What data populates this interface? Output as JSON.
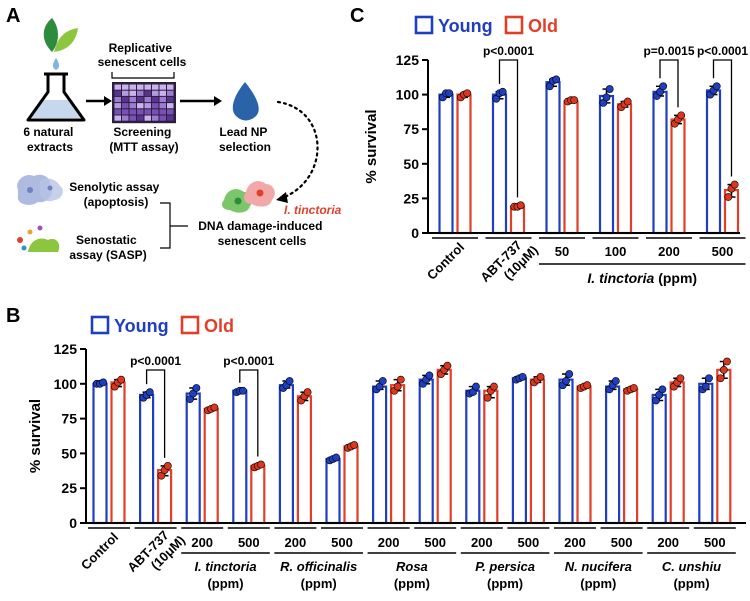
{
  "colors": {
    "young": "#1f3fbf",
    "old": "#e0402a",
    "old_point": "#d9381e",
    "young_point": "#1f3fbf",
    "flask_fill": "#c6d8ee",
    "leaf_dark": "#2e8b3e",
    "leaf_light": "#8cc63f",
    "drop": "#2a63a8",
    "grid_purple": "#7a4fb6"
  },
  "panel_a": {
    "label": "A",
    "extracts": "6 natural\nextracts",
    "replicative": "Replicative\nsenescent cells",
    "screening": "Screening\n(MTT assay)",
    "lead": "Lead NP\nselection",
    "senolytic": "Senolytic assay\n(apoptosis)",
    "senostatic": "Senostatic\nassay (SASP)",
    "itinctoria": "I. tinctoria",
    "dna_damage": "DNA damage-induced\nsenescent cells"
  },
  "chart_data": [
    {
      "panel": "C",
      "type": "bar",
      "legend": [
        "Young",
        "Old"
      ],
      "legend_position": "top",
      "ylabel": "% survival",
      "ylim": [
        0,
        125
      ],
      "yticks": [
        0,
        25,
        50,
        75,
        100,
        125
      ],
      "categories": [
        "Control",
        "ABT-737\n(10μM)",
        "50",
        "100",
        "200",
        "500"
      ],
      "group_label": {
        "text": "I. tinctoria",
        "unit": "(ppm)",
        "from": 2,
        "to": 5
      },
      "series": [
        {
          "name": "Young",
          "values": [
            100,
            100,
            109,
            99,
            102,
            103
          ],
          "points": [
            [
              98,
              101,
              101
            ],
            [
              97,
              101,
              102
            ],
            [
              106,
              110,
              111
            ],
            [
              94,
              98,
              104
            ],
            [
              99,
              102,
              106
            ],
            [
              100,
              103,
              106
            ]
          ]
        },
        {
          "name": "Old",
          "values": [
            100,
            19,
            95,
            93,
            82,
            31
          ],
          "points": [
            [
              98,
              100,
              101
            ],
            [
              19,
              19,
              20
            ],
            [
              95,
              96,
              96
            ],
            [
              91,
              93,
              95
            ],
            [
              79,
              82,
              85
            ],
            [
              26,
              32,
              35
            ]
          ]
        }
      ],
      "annotations": [
        {
          "group": 1,
          "text": "p<0.0001"
        },
        {
          "group": 4,
          "text": "p=0.0015"
        },
        {
          "group": 5,
          "text": "p<0.0001"
        }
      ]
    },
    {
      "panel": "B",
      "type": "bar",
      "legend": [
        "Young",
        "Old"
      ],
      "legend_position": "top-left",
      "ylabel": "% survival",
      "ylim": [
        0,
        125
      ],
      "yticks": [
        0,
        25,
        50,
        75,
        100,
        125
      ],
      "categories": [
        "Control",
        "ABT-737\n(10μM)",
        "200",
        "500",
        "200",
        "500",
        "200",
        "500",
        "200",
        "500",
        "200",
        "500",
        "200",
        "500"
      ],
      "groups": [
        {
          "name": "I. tinctoria",
          "unit": "(ppm)",
          "from": 2,
          "to": 3
        },
        {
          "name": "R. officinalis",
          "unit": "(ppm)",
          "from": 4,
          "to": 5
        },
        {
          "name": "Rosa",
          "unit": "(ppm)",
          "from": 6,
          "to": 7
        },
        {
          "name": "P. persica",
          "unit": "(ppm)",
          "from": 8,
          "to": 9
        },
        {
          "name": "N. nucifera",
          "unit": "(ppm)",
          "from": 10,
          "to": 11
        },
        {
          "name": "C. unshiu",
          "unit": "(ppm)",
          "from": 12,
          "to": 13
        }
      ],
      "series": [
        {
          "name": "Young",
          "values": [
            100,
            92,
            93,
            95,
            99,
            46,
            98,
            103,
            95,
            104,
            103,
            98,
            92,
            100
          ],
          "points": [
            [
              100,
              100,
              101
            ],
            [
              90,
              92,
              94
            ],
            [
              89,
              93,
              97
            ],
            [
              94,
              95,
              95
            ],
            [
              97,
              99,
              102
            ],
            [
              45,
              46,
              47
            ],
            [
              96,
              98,
              102
            ],
            [
              100,
              103,
              106
            ],
            [
              93,
              94,
              98
            ],
            [
              103,
              104,
              105
            ],
            [
              99,
              102,
              107
            ],
            [
              96,
              99,
              102
            ],
            [
              88,
              92,
              96
            ],
            [
              96,
              98,
              104
            ]
          ]
        },
        {
          "name": "Old",
          "values": [
            101,
            38,
            82,
            41,
            91,
            55,
            99,
            110,
            95,
            103,
            98,
            96,
            101,
            110
          ],
          "points": [
            [
              98,
              101,
              103
            ],
            [
              34,
              38,
              41
            ],
            [
              81,
              82,
              83
            ],
            [
              40,
              41,
              42
            ],
            [
              88,
              91,
              94
            ],
            [
              54,
              55,
              56
            ],
            [
              95,
              98,
              103
            ],
            [
              107,
              110,
              113
            ],
            [
              90,
              95,
              98
            ],
            [
              101,
              103,
              105
            ],
            [
              97,
              98,
              99
            ],
            [
              95,
              96,
              97
            ],
            [
              98,
              101,
              104
            ],
            [
              104,
              110,
              116
            ]
          ]
        }
      ],
      "annotations": [
        {
          "group": 1,
          "text": "p<0.0001"
        },
        {
          "group": 3,
          "text": "p<0.0001"
        }
      ]
    }
  ]
}
